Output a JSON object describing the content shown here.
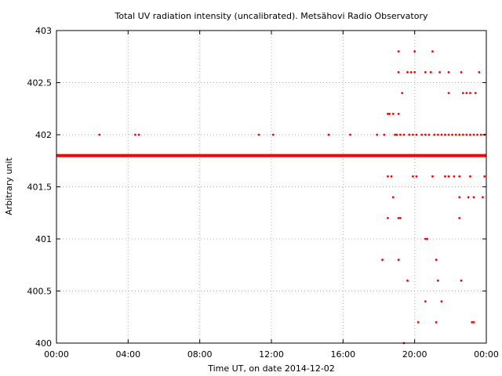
{
  "chart_data": {
    "type": "scatter",
    "title": "Total UV radiation intensity (uncalibrated). Metsähovi Radio Observatory",
    "xlabel": "Time UT, on date 2014-12-02",
    "ylabel": "Arbitrary unit",
    "x_unit": "hours",
    "xlim": [
      0,
      24
    ],
    "ylim": [
      400,
      403
    ],
    "x_ticks": [
      0,
      4,
      8,
      12,
      16,
      20,
      24
    ],
    "x_tick_labels": [
      "00:00",
      "04:00",
      "08:00",
      "12:00",
      "16:00",
      "20:00",
      "00:00"
    ],
    "y_ticks": [
      400,
      400.5,
      401,
      401.5,
      402,
      402.5,
      403
    ],
    "y_tick_labels": [
      "400",
      "400.5",
      "401",
      "401.5",
      "402",
      "402.5",
      "403"
    ],
    "grid": true,
    "marker_color": "#ff0000",
    "baseline": {
      "value": 401.8,
      "x_range": [
        0,
        24
      ]
    },
    "series": [
      {
        "points": [
          [
            2.4,
            402
          ],
          [
            4.4,
            402
          ],
          [
            4.6,
            402
          ],
          [
            11.3,
            402
          ],
          [
            12.1,
            402
          ],
          [
            15.2,
            402
          ],
          [
            16.4,
            402
          ],
          [
            17.9,
            402
          ],
          [
            18.3,
            402
          ],
          [
            18.5,
            402.2
          ],
          [
            18.6,
            402.2
          ],
          [
            18.8,
            402.2
          ],
          [
            18.9,
            402
          ],
          [
            19.1,
            402.2
          ],
          [
            19.0,
            402
          ],
          [
            19.2,
            402
          ],
          [
            19.4,
            402
          ],
          [
            19.7,
            402
          ],
          [
            19.9,
            402
          ],
          [
            20.1,
            402
          ],
          [
            20.4,
            402
          ],
          [
            20.6,
            402
          ],
          [
            20.8,
            402
          ],
          [
            21.1,
            402
          ],
          [
            21.3,
            402
          ],
          [
            21.5,
            402
          ],
          [
            21.7,
            402
          ],
          [
            21.9,
            402
          ],
          [
            22.1,
            402
          ],
          [
            22.3,
            402
          ],
          [
            22.5,
            402
          ],
          [
            22.7,
            402
          ],
          [
            22.9,
            402
          ],
          [
            23.1,
            402
          ],
          [
            23.3,
            402
          ],
          [
            23.5,
            402
          ],
          [
            23.7,
            402
          ],
          [
            23.9,
            402
          ],
          [
            19.1,
            402.8
          ],
          [
            20.0,
            402.8
          ],
          [
            21.0,
            402.8
          ],
          [
            19.1,
            402.6
          ],
          [
            19.6,
            402.6
          ],
          [
            19.8,
            402.6
          ],
          [
            20.0,
            402.6
          ],
          [
            20.6,
            402.6
          ],
          [
            20.9,
            402.6
          ],
          [
            21.4,
            402.6
          ],
          [
            21.9,
            402.6
          ],
          [
            22.6,
            402.6
          ],
          [
            23.6,
            402.6
          ],
          [
            19.3,
            402.4
          ],
          [
            21.9,
            402.4
          ],
          [
            22.7,
            402.4
          ],
          [
            22.9,
            402.4
          ],
          [
            23.1,
            402.4
          ],
          [
            23.4,
            402.4
          ],
          [
            18.5,
            401.6
          ],
          [
            18.7,
            401.6
          ],
          [
            19.9,
            401.6
          ],
          [
            20.1,
            401.6
          ],
          [
            21.0,
            401.6
          ],
          [
            21.7,
            401.6
          ],
          [
            21.9,
            401.6
          ],
          [
            22.2,
            401.6
          ],
          [
            22.5,
            401.6
          ],
          [
            23.1,
            401.6
          ],
          [
            23.9,
            401.6
          ],
          [
            18.8,
            401.4
          ],
          [
            22.5,
            401.4
          ],
          [
            23.0,
            401.4
          ],
          [
            23.3,
            401.4
          ],
          [
            23.8,
            401.4
          ],
          [
            18.5,
            401.2
          ],
          [
            19.1,
            401.2
          ],
          [
            19.2,
            401.2
          ],
          [
            22.5,
            401.2
          ],
          [
            20.6,
            401.0
          ],
          [
            20.7,
            401.0
          ],
          [
            18.2,
            400.8
          ],
          [
            19.1,
            400.8
          ],
          [
            21.2,
            400.8
          ],
          [
            19.6,
            400.6
          ],
          [
            21.3,
            400.6
          ],
          [
            22.6,
            400.6
          ],
          [
            20.6,
            400.4
          ],
          [
            21.5,
            400.4
          ],
          [
            20.2,
            400.2
          ],
          [
            21.2,
            400.2
          ],
          [
            23.2,
            400.2
          ],
          [
            23.3,
            400.2
          ],
          [
            19.4,
            400.0
          ]
        ]
      }
    ]
  }
}
